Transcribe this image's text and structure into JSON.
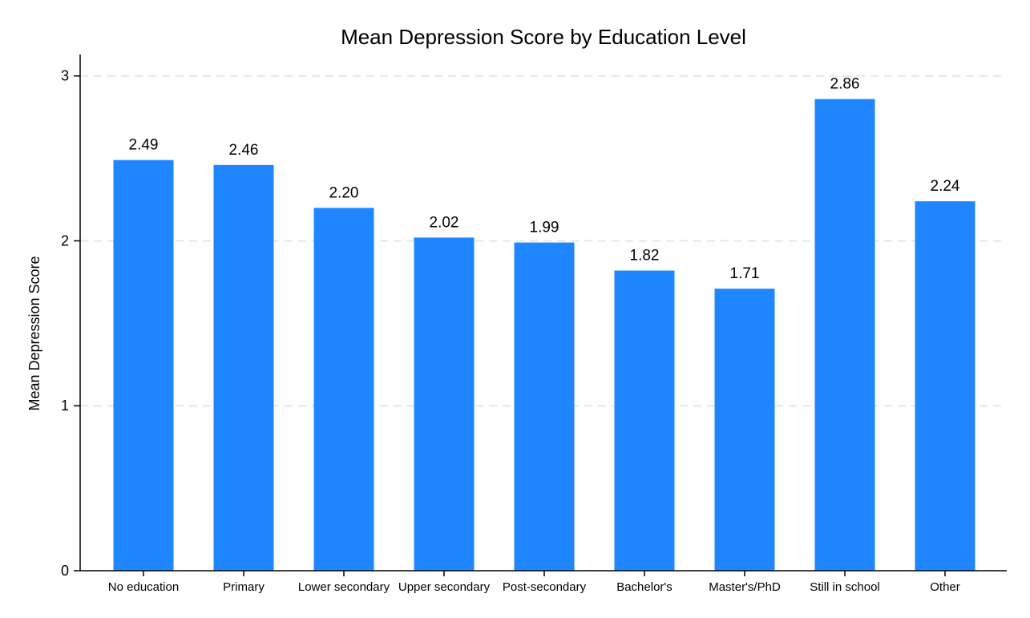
{
  "chart_data": {
    "type": "bar",
    "title": "Mean Depression Score by Education Level",
    "xlabel": "",
    "ylabel": "Mean Depression Score",
    "categories": [
      "No education",
      "Primary",
      "Lower secondary",
      "Upper secondary",
      "Post-secondary",
      "Bachelor's",
      "Master's/PhD",
      "Still in school",
      "Other"
    ],
    "values": [
      2.49,
      2.46,
      2.2,
      2.02,
      1.99,
      1.82,
      1.71,
      2.86,
      2.24
    ],
    "value_labels": [
      "2.49",
      "2.46",
      "2.20",
      "2.02",
      "1.99",
      "1.82",
      "1.71",
      "2.86",
      "2.24"
    ],
    "ylim": [
      0,
      3.13
    ],
    "yticks": [
      0,
      1,
      2,
      3
    ],
    "ytick_labels": [
      "0",
      "1",
      "2",
      "3"
    ],
    "grid": "horizontal dashed",
    "bar_color": "#1f86ff",
    "legend": "none"
  }
}
